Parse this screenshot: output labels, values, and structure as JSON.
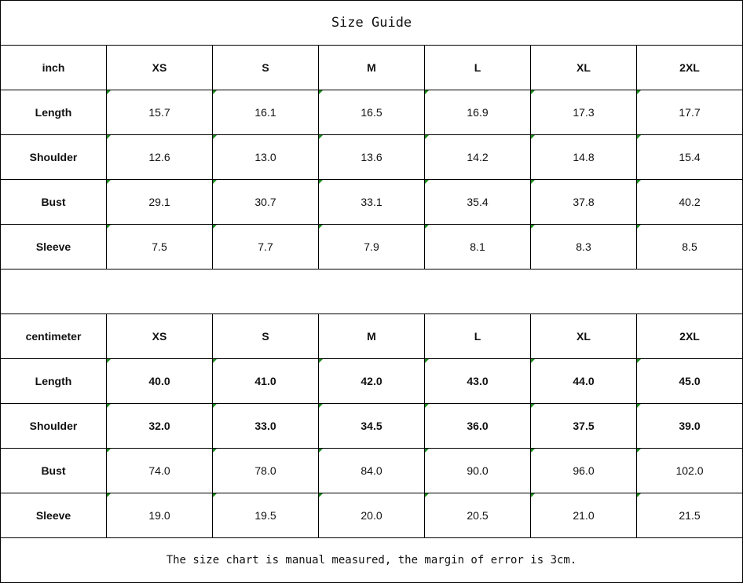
{
  "title": "Size Guide",
  "colors": {
    "comment_marker": "#1a8a1a",
    "border": "#000000"
  },
  "sizes": [
    "XS",
    "S",
    "M",
    "L",
    "XL",
    "2XL"
  ],
  "inch": {
    "unit_label": "inch",
    "rows": [
      {
        "label": "Length",
        "values": [
          "15.7",
          "16.1",
          "16.5",
          "16.9",
          "17.3",
          "17.7"
        ],
        "bold_values": false
      },
      {
        "label": "Shoulder",
        "values": [
          "12.6",
          "13.0",
          "13.6",
          "14.2",
          "14.8",
          "15.4"
        ],
        "bold_values": false
      },
      {
        "label": "Bust",
        "values": [
          "29.1",
          "30.7",
          "33.1",
          "35.4",
          "37.8",
          "40.2"
        ],
        "bold_values": false
      },
      {
        "label": "Sleeve",
        "values": [
          "7.5",
          "7.7",
          "7.9",
          "8.1",
          "8.3",
          "8.5"
        ],
        "bold_values": false
      }
    ]
  },
  "centimeter": {
    "unit_label": "centimeter",
    "rows": [
      {
        "label": "Length",
        "values": [
          "40.0",
          "41.0",
          "42.0",
          "43.0",
          "44.0",
          "45.0"
        ],
        "bold_values": true
      },
      {
        "label": "Shoulder",
        "values": [
          "32.0",
          "33.0",
          "34.5",
          "36.0",
          "37.5",
          "39.0"
        ],
        "bold_values": true
      },
      {
        "label": "Bust",
        "values": [
          "74.0",
          "78.0",
          "84.0",
          "90.0",
          "96.0",
          "102.0"
        ],
        "bold_values": false
      },
      {
        "label": "Sleeve",
        "values": [
          "19.0",
          "19.5",
          "20.0",
          "20.5",
          "21.0",
          "21.5"
        ],
        "bold_values": false
      }
    ]
  },
  "note": "The size chart is manual measured, the margin of error is 3cm."
}
